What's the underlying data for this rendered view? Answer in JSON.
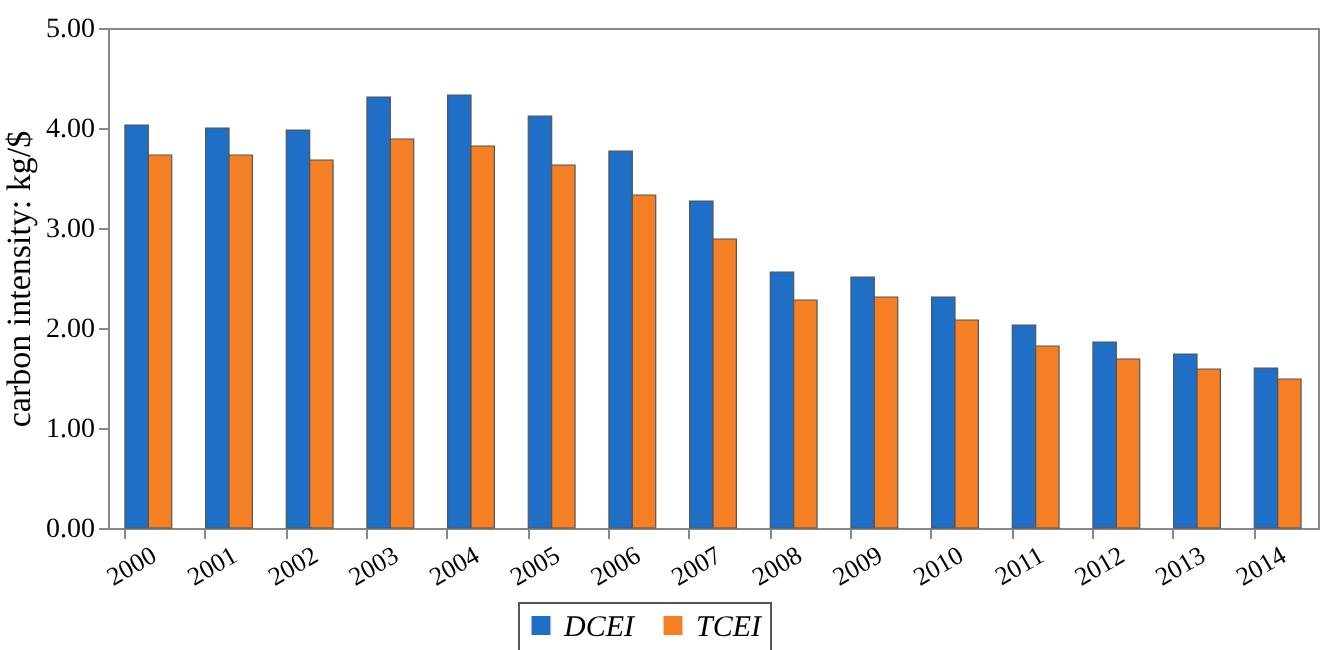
{
  "chart_data": {
    "type": "bar",
    "ylabel": "carbon intensity: kg/$",
    "categories": [
      "2000",
      "2001",
      "2002",
      "2003",
      "2004",
      "2005",
      "2006",
      "2007",
      "2008",
      "2009",
      "2010",
      "2011",
      "2012",
      "2013",
      "2014"
    ],
    "series": [
      {
        "name": "DCEI",
        "color": "#1f6fc6",
        "values": [
          4.03,
          4.0,
          3.98,
          4.31,
          4.33,
          4.12,
          3.77,
          3.27,
          2.56,
          2.51,
          2.31,
          2.03,
          1.86,
          1.74,
          1.6
        ]
      },
      {
        "name": "TCEI",
        "color": "#f47f25",
        "values": [
          3.73,
          3.73,
          3.68,
          3.89,
          3.82,
          3.63,
          3.33,
          2.89,
          2.28,
          2.31,
          2.08,
          1.82,
          1.69,
          1.59,
          1.49
        ]
      }
    ],
    "ylim": [
      0,
      5
    ],
    "yticks": [
      {
        "value": 0,
        "label": "0.00"
      },
      {
        "value": 1,
        "label": "1.00"
      },
      {
        "value": 2,
        "label": "2.00"
      },
      {
        "value": 3,
        "label": "3.00"
      },
      {
        "value": 4,
        "label": "4.00"
      },
      {
        "value": 5,
        "label": "5.00"
      }
    ],
    "grid": false,
    "legend": "bottom"
  }
}
